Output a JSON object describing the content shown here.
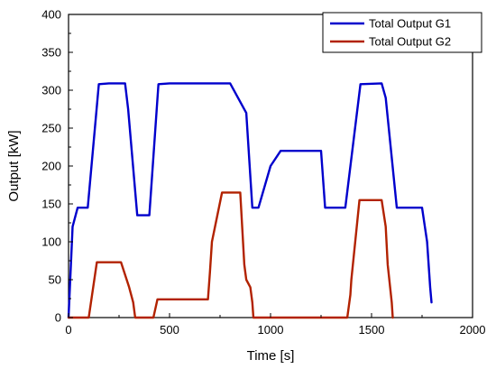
{
  "chart_data": {
    "type": "line",
    "title": "",
    "xlabel": "Time [s]",
    "ylabel": "Output [kW]",
    "xlim": [
      0,
      2000
    ],
    "ylim": [
      0,
      400
    ],
    "xticks": [
      0,
      500,
      1000,
      1500,
      2000
    ],
    "yticks": [
      0,
      50,
      100,
      150,
      200,
      250,
      300,
      350,
      400
    ],
    "grid": false,
    "legend_position": "top-right",
    "series": [
      {
        "name": "Total Output G1",
        "color": "#0000cc",
        "x": [
          0,
          20,
          45,
          95,
          150,
          200,
          280,
          295,
          340,
          400,
          445,
          500,
          800,
          880,
          910,
          940,
          1000,
          1050,
          1100,
          1200,
          1250,
          1270,
          1320,
          1370,
          1445,
          1550,
          1570,
          1625,
          1750,
          1775,
          1790,
          1797
        ],
        "y": [
          0,
          120,
          145,
          145,
          308,
          309,
          309,
          275,
          135,
          135,
          308,
          309,
          309,
          270,
          145,
          145,
          200,
          220,
          220,
          220,
          220,
          145,
          145,
          145,
          308,
          309,
          290,
          145,
          145,
          100,
          40,
          20
        ]
      },
      {
        "name": "Total Output G2",
        "color": "#b22200",
        "x": [
          0,
          100,
          140,
          190,
          260,
          300,
          320,
          330,
          420,
          440,
          500,
          690,
          700,
          710,
          760,
          850,
          870,
          880,
          900,
          910,
          915,
          1380,
          1395,
          1400,
          1440,
          1550,
          1570,
          1580,
          1600,
          1605
        ],
        "y": [
          0,
          0,
          73,
          73,
          73,
          40,
          20,
          0,
          0,
          24,
          24,
          24,
          60,
          100,
          165,
          165,
          70,
          50,
          40,
          20,
          0,
          0,
          30,
          50,
          155,
          155,
          120,
          70,
          20,
          0
        ]
      }
    ]
  }
}
